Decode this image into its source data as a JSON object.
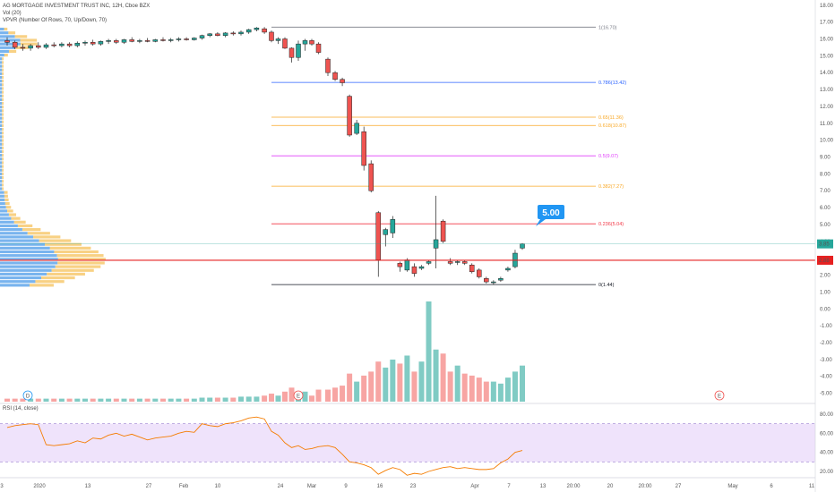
{
  "header": {
    "title": "AG MORTGAGE INVESTMENT TRUST INC, 12H, Cboe BZX",
    "vol_label": "Vol (20)",
    "vpvr_label": "VPVR (Number Of Rows, 70, Up/Down, 70)"
  },
  "rsi": {
    "label": "RSI (14, close)",
    "ticks": [
      "80.00",
      "60.00",
      "40.00",
      "20.00"
    ],
    "band": [
      30,
      70
    ]
  },
  "colors": {
    "up": "#26a69a",
    "down": "#ef5350",
    "up_vol": "#80cbc4",
    "down_vol": "#f7a5a3",
    "vpvr_up": "#4c9be8",
    "vpvr_down": "#f5c15b",
    "rsi_line": "#f57c00",
    "rsi_band": "#efe3fb",
    "price_line": "#e62020",
    "current_price": "#26a69a",
    "callout": "#2196f3"
  },
  "callout": {
    "value": 5.0,
    "label": "5.00"
  },
  "chart_data": {
    "type": "candlestick",
    "title": "AG MORTGAGE INVESTMENT TRUST INC, 12H, Cboe BZX",
    "price_axis": {
      "min": -5.5,
      "max": 18.2,
      "ticks": [
        "18.00",
        "17.00",
        "16.00",
        "15.00",
        "14.00",
        "13.00",
        "12.00",
        "11.00",
        "10.00",
        "9.00",
        "8.00",
        "7.00",
        "6.00",
        "5.00",
        "4.00",
        "3.00",
        "2.00",
        "1.00",
        "0.00",
        "-1.00",
        "-2.00",
        "-3.00",
        "-4.00",
        "-5.00"
      ]
    },
    "time_axis": {
      "labels": [
        "3",
        "2020",
        "13",
        "27",
        "Feb",
        "10",
        "24",
        "Mar",
        "9",
        "16",
        "23",
        "Apr",
        "7",
        "13",
        "20:00",
        "20",
        "20:00",
        "27",
        "May",
        "6",
        "11"
      ]
    },
    "last_price": {
      "value": 2.88,
      "label": "2.88"
    },
    "current_price": {
      "value": 3.85,
      "label": "3.85"
    },
    "fib_levels": [
      {
        "level": 1,
        "value": 16.7,
        "label": "1(16.70)",
        "color": "#787b86"
      },
      {
        "level": 0.786,
        "value": 13.42,
        "label": "0.786(13.42)",
        "color": "#2962ff"
      },
      {
        "level": 0.65,
        "value": 11.36,
        "label": "0.65(11.36)",
        "color": "#f9a825"
      },
      {
        "level": 0.618,
        "value": 10.87,
        "label": "0.618(10.87)",
        "color": "#f9a825"
      },
      {
        "level": 0.5,
        "value": 9.07,
        "label": "0.5(9.07)",
        "color": "#e040fb"
      },
      {
        "level": 0.382,
        "value": 7.27,
        "label": "0.382(7.27)",
        "color": "#f9a825"
      },
      {
        "level": 0.236,
        "value": 5.04,
        "label": "0.236(5.04)",
        "color": "#f23645"
      },
      {
        "level": 0,
        "value": 1.44,
        "label": "0(1.44)",
        "color": "#131722"
      }
    ],
    "candles": [
      {
        "o": 15.9,
        "h": 16.1,
        "l": 15.6,
        "c": 15.8
      },
      {
        "o": 15.8,
        "h": 15.9,
        "l": 15.4,
        "c": 15.5
      },
      {
        "o": 15.5,
        "h": 15.7,
        "l": 15.3,
        "c": 15.45
      },
      {
        "o": 15.45,
        "h": 15.7,
        "l": 15.3,
        "c": 15.6
      },
      {
        "o": 15.6,
        "h": 15.8,
        "l": 15.4,
        "c": 15.5
      },
      {
        "o": 15.5,
        "h": 15.75,
        "l": 15.4,
        "c": 15.65
      },
      {
        "o": 15.65,
        "h": 15.8,
        "l": 15.5,
        "c": 15.6
      },
      {
        "o": 15.6,
        "h": 15.8,
        "l": 15.5,
        "c": 15.7
      },
      {
        "o": 15.7,
        "h": 15.8,
        "l": 15.5,
        "c": 15.6
      },
      {
        "o": 15.6,
        "h": 15.85,
        "l": 15.5,
        "c": 15.75
      },
      {
        "o": 15.75,
        "h": 15.9,
        "l": 15.6,
        "c": 15.8
      },
      {
        "o": 15.8,
        "h": 15.95,
        "l": 15.6,
        "c": 15.7
      },
      {
        "o": 15.7,
        "h": 15.9,
        "l": 15.6,
        "c": 15.85
      },
      {
        "o": 15.85,
        "h": 16.0,
        "l": 15.7,
        "c": 15.9
      },
      {
        "o": 15.9,
        "h": 16.0,
        "l": 15.7,
        "c": 15.8
      },
      {
        "o": 15.8,
        "h": 16.0,
        "l": 15.7,
        "c": 15.95
      },
      {
        "o": 15.95,
        "h": 16.1,
        "l": 15.8,
        "c": 15.85
      },
      {
        "o": 15.85,
        "h": 16.0,
        "l": 15.75,
        "c": 15.9
      },
      {
        "o": 15.9,
        "h": 16.05,
        "l": 15.8,
        "c": 15.85
      },
      {
        "o": 15.85,
        "h": 16.0,
        "l": 15.8,
        "c": 15.95
      },
      {
        "o": 15.95,
        "h": 16.1,
        "l": 15.85,
        "c": 15.9
      },
      {
        "o": 15.9,
        "h": 16.05,
        "l": 15.8,
        "c": 15.95
      },
      {
        "o": 15.95,
        "h": 16.1,
        "l": 15.85,
        "c": 16.0
      },
      {
        "o": 16.0,
        "h": 16.1,
        "l": 15.9,
        "c": 15.95
      },
      {
        "o": 15.95,
        "h": 16.1,
        "l": 15.9,
        "c": 16.05
      },
      {
        "o": 16.05,
        "h": 16.25,
        "l": 15.95,
        "c": 16.2
      },
      {
        "o": 16.2,
        "h": 16.35,
        "l": 16.1,
        "c": 16.3
      },
      {
        "o": 16.3,
        "h": 16.4,
        "l": 16.15,
        "c": 16.2
      },
      {
        "o": 16.2,
        "h": 16.4,
        "l": 16.1,
        "c": 16.35
      },
      {
        "o": 16.35,
        "h": 16.45,
        "l": 16.2,
        "c": 16.3
      },
      {
        "o": 16.3,
        "h": 16.5,
        "l": 16.2,
        "c": 16.4
      },
      {
        "o": 16.4,
        "h": 16.6,
        "l": 16.3,
        "c": 16.55
      },
      {
        "o": 16.55,
        "h": 16.7,
        "l": 16.45,
        "c": 16.65
      },
      {
        "o": 16.6,
        "h": 16.7,
        "l": 16.3,
        "c": 16.4
      },
      {
        "o": 16.4,
        "h": 16.5,
        "l": 15.8,
        "c": 15.9
      },
      {
        "o": 15.9,
        "h": 16.1,
        "l": 15.7,
        "c": 16.0
      },
      {
        "o": 16.0,
        "h": 16.1,
        "l": 15.4,
        "c": 15.45
      },
      {
        "o": 15.45,
        "h": 15.5,
        "l": 14.6,
        "c": 14.9
      },
      {
        "o": 14.9,
        "h": 15.9,
        "l": 14.7,
        "c": 15.7
      },
      {
        "o": 15.7,
        "h": 16.0,
        "l": 15.3,
        "c": 15.9
      },
      {
        "o": 15.9,
        "h": 16.0,
        "l": 15.6,
        "c": 15.7
      },
      {
        "o": 15.7,
        "h": 15.8,
        "l": 15.1,
        "c": 15.2
      },
      {
        "o": 14.8,
        "h": 14.9,
        "l": 13.8,
        "c": 14.0
      },
      {
        "o": 14.0,
        "h": 14.1,
        "l": 13.5,
        "c": 13.6
      },
      {
        "o": 13.6,
        "h": 13.7,
        "l": 13.2,
        "c": 13.4
      },
      {
        "o": 12.6,
        "h": 12.7,
        "l": 10.2,
        "c": 10.3
      },
      {
        "o": 10.4,
        "h": 11.2,
        "l": 10.3,
        "c": 11.0
      },
      {
        "o": 10.5,
        "h": 10.8,
        "l": 8.2,
        "c": 8.5
      },
      {
        "o": 8.6,
        "h": 8.8,
        "l": 6.9,
        "c": 7.0
      },
      {
        "o": 5.7,
        "h": 5.8,
        "l": 1.9,
        "c": 2.9
      },
      {
        "o": 4.4,
        "h": 4.8,
        "l": 3.7,
        "c": 4.7
      },
      {
        "o": 4.5,
        "h": 5.5,
        "l": 4.2,
        "c": 5.3
      },
      {
        "o": 2.7,
        "h": 2.8,
        "l": 2.2,
        "c": 2.5
      },
      {
        "o": 2.3,
        "h": 3.0,
        "l": 2.2,
        "c": 2.9
      },
      {
        "o": 2.5,
        "h": 2.7,
        "l": 1.9,
        "c": 2.1
      },
      {
        "o": 2.4,
        "h": 2.6,
        "l": 2.3,
        "c": 2.5
      },
      {
        "o": 2.7,
        "h": 2.9,
        "l": 2.6,
        "c": 2.8
      },
      {
        "o": 3.6,
        "h": 6.7,
        "l": 2.4,
        "c": 4.1
      },
      {
        "o": 5.2,
        "h": 5.3,
        "l": 3.9,
        "c": 4.0
      },
      {
        "o": 2.8,
        "h": 3.0,
        "l": 2.6,
        "c": 2.7
      },
      {
        "o": 2.75,
        "h": 2.9,
        "l": 2.6,
        "c": 2.8
      },
      {
        "o": 2.8,
        "h": 2.9,
        "l": 2.6,
        "c": 2.7
      },
      {
        "o": 2.6,
        "h": 2.7,
        "l": 2.1,
        "c": 2.2
      },
      {
        "o": 2.3,
        "h": 2.4,
        "l": 1.8,
        "c": 1.9
      },
      {
        "o": 1.8,
        "h": 1.9,
        "l": 1.5,
        "c": 1.6
      },
      {
        "o": 1.55,
        "h": 1.7,
        "l": 1.44,
        "c": 1.6
      },
      {
        "o": 1.7,
        "h": 1.9,
        "l": 1.6,
        "c": 1.8
      },
      {
        "o": 2.3,
        "h": 2.5,
        "l": 2.2,
        "c": 2.4
      },
      {
        "o": 2.5,
        "h": 3.5,
        "l": 2.4,
        "c": 3.3
      },
      {
        "o": 3.6,
        "h": 3.9,
        "l": 3.5,
        "c": 3.85
      }
    ],
    "volume": [
      0.03,
      0.03,
      0.03,
      0.03,
      0.03,
      0.03,
      0.03,
      0.03,
      0.03,
      0.03,
      0.03,
      0.03,
      0.03,
      0.03,
      0.03,
      0.03,
      0.03,
      0.03,
      0.03,
      0.03,
      0.03,
      0.03,
      0.03,
      0.03,
      0.03,
      0.04,
      0.04,
      0.04,
      0.04,
      0.04,
      0.05,
      0.05,
      0.05,
      0.06,
      0.08,
      0.06,
      0.1,
      0.14,
      0.08,
      0.1,
      0.06,
      0.12,
      0.12,
      0.14,
      0.16,
      0.28,
      0.2,
      0.26,
      0.3,
      0.4,
      0.34,
      0.42,
      0.38,
      0.46,
      0.3,
      0.4,
      1.0,
      0.52,
      0.48,
      0.3,
      0.36,
      0.28,
      0.26,
      0.24,
      0.2,
      0.2,
      0.18,
      0.24,
      0.3,
      0.36
    ],
    "rsi_values": [
      66,
      68,
      69,
      70,
      69,
      48,
      47,
      48,
      49,
      52,
      50,
      55,
      54,
      58,
      60,
      57,
      59,
      56,
      53,
      55,
      56,
      57,
      60,
      62,
      61,
      70,
      68,
      67,
      70,
      71,
      73,
      76,
      77,
      75,
      62,
      58,
      50,
      45,
      47,
      43,
      44,
      46,
      47,
      45,
      38,
      30,
      29,
      27,
      24,
      17,
      21,
      24,
      22,
      16,
      18,
      17,
      20,
      22,
      24,
      25,
      23,
      24,
      23,
      22,
      22,
      23,
      29,
      33,
      40,
      42
    ]
  }
}
